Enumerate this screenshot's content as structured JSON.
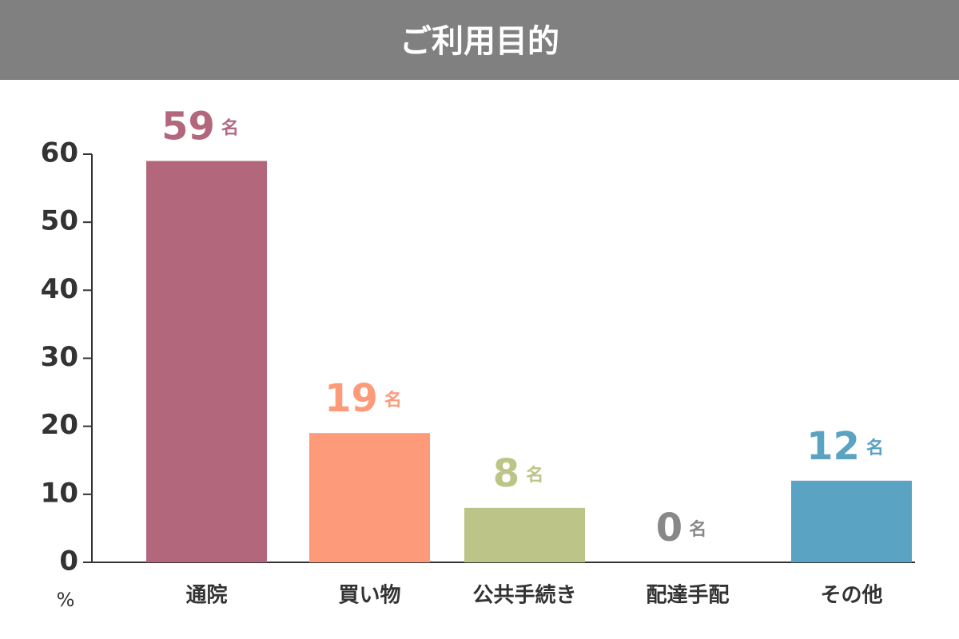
{
  "chart_data": {
    "type": "bar",
    "title": "ご利用目的",
    "categories": [
      "通院",
      "買い物",
      "公共手続き",
      "配達手配",
      "その他"
    ],
    "values": [
      59,
      19,
      8,
      0,
      12
    ],
    "value_unit": "名",
    "colors": [
      "#b2677d",
      "#fd9a7a",
      "#bdc487",
      "#888888",
      "#5ba3c2"
    ],
    "y_label": "%",
    "ylim": [
      0,
      60
    ],
    "yticks": [
      0,
      10,
      20,
      30,
      40,
      50,
      60
    ],
    "grid": false
  }
}
